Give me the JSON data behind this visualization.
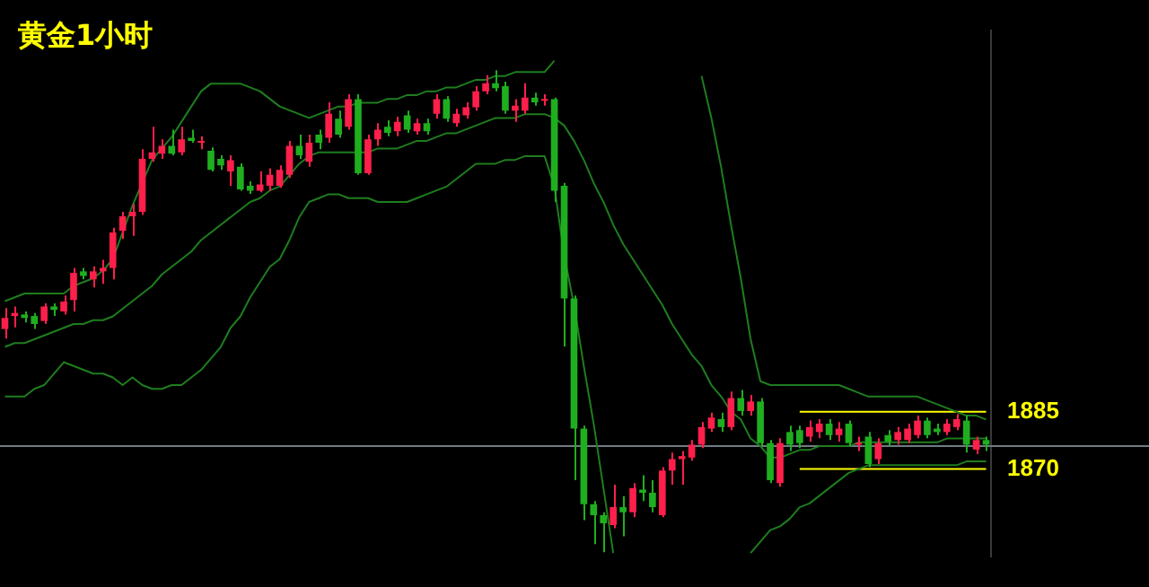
{
  "chart_data": {
    "type": "candlestick",
    "title": "黄金1小时",
    "categories": [
      null,
      null,
      null,
      null,
      null,
      null,
      null,
      null,
      null,
      null,
      null,
      null,
      null,
      null,
      null,
      null,
      null,
      null,
      null,
      null,
      null,
      null,
      null,
      null,
      null,
      null,
      null,
      null,
      null,
      null,
      null,
      null,
      null,
      null,
      null,
      null,
      null,
      null,
      null,
      null,
      null,
      null,
      null,
      null,
      null,
      null,
      null,
      null,
      null,
      null,
      null,
      null,
      null,
      null,
      null,
      null,
      null,
      null,
      null,
      null,
      null,
      null,
      null,
      null,
      null,
      null,
      null,
      null,
      null,
      null,
      null,
      null,
      null,
      null,
      null,
      null,
      null,
      null,
      null,
      null,
      null,
      null,
      null,
      null,
      null,
      null,
      null,
      null,
      null,
      null,
      null,
      null,
      null,
      null,
      null,
      null,
      null,
      null,
      null,
      null,
      null
    ],
    "ylim": [
      1847,
      1985
    ],
    "yticks": [
      1885,
      1870
    ],
    "tick_labels": "y",
    "colors": [
      "#ff1f4b",
      "#ff1f4b",
      "#1fae1f",
      "#1fae1f",
      "#ff1f4b",
      "#1fae1f",
      "#ff1f4b",
      "#ff1f4b",
      "#1fae1f",
      "#ff1f4b",
      "#ff1f4b",
      "#ff1f4b",
      "#ff1f4b",
      "#ff1f4b",
      "#ff1f4b",
      "#ff1f4b",
      "#ff1f4b",
      "#1fae1f",
      "#ff1f4b",
      "#1fae1f",
      "#ff1f4b",
      "#1fae1f",
      "#1fae1f",
      "#ff1f4b",
      "#1fae1f",
      "#1fae1f",
      "#ff1f4b",
      "#ff1f4b",
      "#ff1f4b",
      "#ff1f4b",
      "#1fae1f",
      "#ff1f4b",
      "#1fae1f",
      "#ff1f4b",
      "#1fae1f",
      "#ff1f4b",
      "#1fae1f",
      "#ff1f4b",
      "#ff1f4b",
      "#1fae1f",
      "#ff1f4b",
      "#1fae1f",
      "#ff1f4b",
      "#1fae1f",
      "#ff1f4b",
      "#1fae1f",
      "#ff1f4b",
      "#ff1f4b",
      "#ff1f4b",
      "#ff1f4b",
      "#1fae1f",
      "#1fae1f",
      "#ff1f4b",
      "#ff1f4b",
      "#1fae1f",
      "#ff1f4b",
      "#1fae1f",
      "#1fae1f",
      "#1fae1f",
      "#1fae1f",
      "#1fae1f",
      "#1fae1f",
      "#ff1f4b",
      "#1fae1f",
      "#ff1f4b",
      "#1fae1f",
      "#1fae1f",
      "#ff1f4b",
      "#ff1f4b",
      "#ff1f4b",
      "#ff1f4b",
      "#ff1f4b",
      "#ff1f4b",
      "#1fae1f",
      "#ff1f4b",
      "#1fae1f",
      "#ff1f4b",
      "#1fae1f",
      "#1fae1f",
      "#ff1f4b",
      "#1fae1f",
      "#1fae1f",
      "#ff1f4b",
      "#ff1f4b",
      "#1fae1f",
      "#ff1f4b",
      "#1fae1f",
      "#ff1f4b",
      "#1fae1f",
      "#ff1f4b",
      "#1fae1f",
      "#ff1f4b",
      "#ff1f4b",
      "#ff1f4b",
      "#1fae1f",
      "#1fae1f",
      "#ff1f4b",
      "#ff1f4b",
      "#1fae1f",
      "#ff1f4b",
      "#1fae1f"
    ],
    "ohlc": [
      [
        1906.7,
        1912.2,
        1904.2,
        1909.6
      ],
      [
        1910.1,
        1912.6,
        1907.1,
        1910.9
      ],
      [
        1910.5,
        1911.3,
        1908.4,
        1909.6
      ],
      [
        1910.1,
        1910.9,
        1906.7,
        1908.0
      ],
      [
        1908.8,
        1913.4,
        1908.0,
        1912.6
      ],
      [
        1912.6,
        1913.4,
        1910.1,
        1911.7
      ],
      [
        1911.3,
        1915.5,
        1910.5,
        1913.9
      ],
      [
        1914.3,
        1922.7,
        1911.3,
        1921.4
      ],
      [
        1921.8,
        1922.7,
        1919.7,
        1920.6
      ],
      [
        1919.7,
        1923.1,
        1917.6,
        1921.8
      ],
      [
        1921.8,
        1924.8,
        1918.5,
        1922.7
      ],
      [
        1922.7,
        1933.2,
        1919.7,
        1932.0
      ],
      [
        1932.4,
        1937.4,
        1930.3,
        1936.2
      ],
      [
        1936.2,
        1939.5,
        1931.1,
        1937.4
      ],
      [
        1937.4,
        1953.8,
        1936.6,
        1951.3
      ],
      [
        1951.3,
        1959.7,
        1950.5,
        1953.0
      ],
      [
        1952.6,
        1956.4,
        1951.3,
        1954.7
      ],
      [
        1954.7,
        1958.9,
        1952.2,
        1952.6
      ],
      [
        1953.0,
        1959.7,
        1952.2,
        1956.4
      ],
      [
        1956.8,
        1958.9,
        1955.5,
        1956.0
      ],
      [
        1955.5,
        1957.2,
        1953.8,
        1956.0
      ],
      [
        1953.4,
        1954.3,
        1948.0,
        1948.4
      ],
      [
        1951.3,
        1952.2,
        1948.4,
        1949.6
      ],
      [
        1948.0,
        1952.2,
        1944.2,
        1950.9
      ],
      [
        1949.2,
        1950.1,
        1942.9,
        1943.3
      ],
      [
        1944.2,
        1945.4,
        1942.1,
        1942.9
      ],
      [
        1942.9,
        1948.0,
        1942.5,
        1944.6
      ],
      [
        1944.2,
        1948.8,
        1942.9,
        1947.1
      ],
      [
        1944.2,
        1949.6,
        1943.7,
        1948.4
      ],
      [
        1947.1,
        1956.0,
        1946.3,
        1954.7
      ],
      [
        1954.7,
        1957.6,
        1951.3,
        1952.2
      ],
      [
        1950.5,
        1957.6,
        1949.2,
        1955.5
      ],
      [
        1957.6,
        1958.9,
        1953.8,
        1955.5
      ],
      [
        1956.8,
        1966.1,
        1955.5,
        1963.1
      ],
      [
        1961.8,
        1963.9,
        1956.8,
        1957.6
      ],
      [
        1959.7,
        1968.2,
        1958.9,
        1966.9
      ],
      [
        1966.9,
        1968.2,
        1947.1,
        1947.5
      ],
      [
        1947.5,
        1957.6,
        1947.1,
        1956.4
      ],
      [
        1956.4,
        1960.6,
        1954.7,
        1958.9
      ],
      [
        1959.7,
        1961.4,
        1957.2,
        1958.1
      ],
      [
        1958.5,
        1962.3,
        1957.2,
        1961.0
      ],
      [
        1962.7,
        1963.9,
        1958.1,
        1958.9
      ],
      [
        1958.5,
        1961.8,
        1957.6,
        1960.6
      ],
      [
        1960.6,
        1961.8,
        1957.6,
        1958.5
      ],
      [
        1963.1,
        1968.2,
        1961.8,
        1966.9
      ],
      [
        1966.9,
        1967.7,
        1961.0,
        1961.8
      ],
      [
        1960.6,
        1964.4,
        1959.7,
        1963.1
      ],
      [
        1962.7,
        1966.1,
        1961.8,
        1964.8
      ],
      [
        1964.8,
        1970.3,
        1963.9,
        1969.0
      ],
      [
        1969.0,
        1973.2,
        1968.2,
        1971.1
      ],
      [
        1971.1,
        1974.5,
        1969.0,
        1969.8
      ],
      [
        1970.3,
        1971.5,
        1963.1,
        1963.9
      ],
      [
        1963.9,
        1966.9,
        1961.0,
        1965.2
      ],
      [
        1963.9,
        1971.1,
        1963.1,
        1967.3
      ],
      [
        1967.3,
        1968.6,
        1965.2,
        1966.1
      ],
      [
        1966.5,
        1968.2,
        1965.2,
        1966.9
      ],
      [
        1966.9,
        1967.3,
        1940.0,
        1942.9
      ],
      [
        1944.2,
        1945.0,
        1902.1,
        1914.7
      ],
      [
        1914.7,
        1915.5,
        1867.1,
        1880.6
      ],
      [
        1880.6,
        1881.4,
        1856.6,
        1860.8
      ],
      [
        1860.8,
        1861.6,
        1850.3,
        1857.9
      ],
      [
        1857.9,
        1858.7,
        1848.2,
        1855.8
      ],
      [
        1855.3,
        1865.9,
        1854.5,
        1860.0
      ],
      [
        1860.0,
        1862.9,
        1852.4,
        1858.7
      ],
      [
        1858.7,
        1866.3,
        1857.4,
        1865.0
      ],
      [
        1864.6,
        1868.4,
        1861.6,
        1863.8
      ],
      [
        1863.8,
        1867.1,
        1858.7,
        1860.0
      ],
      [
        1857.9,
        1870.5,
        1857.4,
        1869.6
      ],
      [
        1869.6,
        1874.3,
        1865.9,
        1872.6
      ],
      [
        1872.6,
        1874.7,
        1865.9,
        1873.4
      ],
      [
        1873.0,
        1877.6,
        1872.2,
        1876.4
      ],
      [
        1876.4,
        1882.3,
        1875.5,
        1881.0
      ],
      [
        1880.6,
        1884.8,
        1879.7,
        1883.5
      ],
      [
        1883.1,
        1884.8,
        1879.7,
        1881.0
      ],
      [
        1881.0,
        1890.3,
        1880.2,
        1888.6
      ],
      [
        1888.6,
        1890.7,
        1884.0,
        1885.2
      ],
      [
        1885.2,
        1889.4,
        1884.0,
        1887.7
      ],
      [
        1887.7,
        1888.6,
        1876.0,
        1876.8
      ],
      [
        1876.8,
        1877.6,
        1866.3,
        1867.1
      ],
      [
        1866.3,
        1878.1,
        1865.4,
        1876.8
      ],
      [
        1879.7,
        1881.4,
        1874.7,
        1876.4
      ],
      [
        1880.2,
        1881.4,
        1875.5,
        1876.8
      ],
      [
        1878.5,
        1882.7,
        1877.2,
        1881.0
      ],
      [
        1879.7,
        1883.1,
        1878.1,
        1881.9
      ],
      [
        1881.9,
        1883.1,
        1877.6,
        1878.9
      ],
      [
        1878.9,
        1882.3,
        1877.2,
        1880.6
      ],
      [
        1881.9,
        1882.7,
        1876.0,
        1876.8
      ],
      [
        1876.4,
        1878.5,
        1874.7,
        1876.8
      ],
      [
        1878.5,
        1879.7,
        1870.5,
        1871.3
      ],
      [
        1872.6,
        1878.1,
        1871.3,
        1876.8
      ],
      [
        1878.9,
        1880.2,
        1876.0,
        1877.2
      ],
      [
        1877.6,
        1881.0,
        1876.4,
        1879.7
      ],
      [
        1877.6,
        1881.9,
        1876.8,
        1880.6
      ],
      [
        1878.9,
        1884.0,
        1878.1,
        1882.7
      ],
      [
        1882.7,
        1883.5,
        1878.1,
        1878.9
      ],
      [
        1880.6,
        1881.9,
        1878.9,
        1879.7
      ],
      [
        1879.7,
        1883.1,
        1878.9,
        1881.9
      ],
      [
        1881.0,
        1884.4,
        1880.2,
        1883.1
      ],
      [
        1882.7,
        1884.0,
        1874.3,
        1876.4
      ],
      [
        1875.1,
        1878.5,
        1873.9,
        1877.6
      ],
      [
        1877.6,
        1878.5,
        1874.7,
        1876.4
      ]
    ],
    "series": [
      {
        "type": "line",
        "color": "#1e7d1e",
        "values": [
          1914,
          1915,
          1916,
          1916,
          1916,
          1916,
          1916,
          1918,
          1919,
          1920,
          1922,
          1925,
          1932,
          1939,
          1945,
          1951,
          1954,
          1957,
          1961,
          1965,
          1969,
          1971,
          1971,
          1971,
          1971,
          1970,
          1969,
          1967,
          1965,
          1964,
          1963,
          1962,
          1963,
          1964,
          1965,
          1965,
          1966,
          1966,
          1966,
          1967,
          1967,
          1968,
          1968,
          1969,
          1969,
          1970,
          1970,
          1971,
          1972,
          1972,
          1973,
          1973,
          1974,
          1974,
          1974,
          1974,
          1977,
          null,
          null,
          null,
          null,
          null,
          null,
          null,
          null,
          null,
          null,
          null,
          null,
          null,
          null,
          1973,
          1962,
          1949,
          1934,
          1920,
          1904,
          1893,
          1892,
          1892,
          1892,
          1892,
          1892,
          1892,
          1892,
          1892,
          1891,
          1890,
          1889,
          1889,
          1889,
          1889,
          1889,
          1889,
          1888,
          1887,
          1886,
          1885,
          1884,
          1884,
          1883
        ]
      },
      {
        "type": "line",
        "color": "#1e7d1e",
        "values": [
          1902,
          1903,
          1903,
          1904,
          1905,
          1906,
          1907,
          1908,
          1908,
          1909,
          1909,
          1910,
          1912,
          1914,
          1916,
          1918,
          1921,
          1923,
          1925,
          1927,
          1930,
          1932,
          1934,
          1936,
          1938,
          1940,
          1941,
          1943,
          1944,
          1947,
          1950,
          1952,
          1953,
          1953,
          1953,
          1953,
          1953,
          1953,
          1954,
          1954,
          1954,
          1955,
          1956,
          1956,
          1957,
          1958,
          1958,
          1959,
          1960,
          1961,
          1962,
          1962,
          1962,
          1963,
          1963,
          1963,
          1962,
          1960,
          1956,
          1951,
          1945,
          1940,
          1934,
          1929,
          1925,
          1921,
          1917,
          1913,
          1908,
          1904,
          1900,
          1897,
          1892,
          1889,
          1885,
          1883,
          1878,
          1876,
          1873,
          1873,
          1874,
          1875,
          1875,
          1876,
          1876,
          1876,
          1876,
          1877,
          1877,
          1877,
          1877,
          1877,
          1877,
          1877,
          1877,
          1877,
          1878,
          1878,
          1878,
          1878,
          1878
        ]
      },
      {
        "type": "line",
        "color": "#1e7d1e",
        "values": [
          1889,
          1889,
          1889,
          1891,
          1892,
          1895,
          1898,
          1897,
          1896,
          1895,
          1895,
          1894,
          1892,
          1894,
          1892,
          1891,
          1891,
          1892,
          1892,
          1894,
          1896,
          1899,
          1902,
          1907,
          1910,
          1915,
          1919,
          1923,
          1925,
          1930,
          1936,
          1940,
          1941,
          1942,
          1942,
          1941,
          1941,
          1941,
          1940,
          1940,
          1940,
          1940,
          1941,
          1942,
          1943,
          1944,
          1946,
          1948,
          1950,
          1950,
          1950,
          1951,
          1951,
          1952,
          1952,
          1952,
          1944,
          1926,
          1913,
          1897,
          1882,
          1865,
          1848,
          null,
          null,
          null,
          null,
          null,
          null,
          null,
          null,
          null,
          null,
          null,
          null,
          null,
          1848,
          1851,
          1854,
          1855,
          1857,
          1860,
          1861,
          1863,
          1865,
          1867,
          1869,
          1870,
          1871,
          1871,
          1871,
          1871,
          1871,
          1871,
          1871,
          1871,
          1871,
          1871,
          1872,
          1872,
          1872
        ]
      },
      {
        "type": "line",
        "color": "#ffff00",
        "values": [
          null,
          null,
          null,
          null,
          null,
          null,
          null,
          null,
          null,
          null,
          null,
          null,
          null,
          null,
          null,
          null,
          null,
          null,
          null,
          null,
          null,
          null,
          null,
          null,
          null,
          null,
          null,
          null,
          null,
          null,
          null,
          null,
          null,
          null,
          null,
          null,
          null,
          null,
          null,
          null,
          null,
          null,
          null,
          null,
          null,
          null,
          null,
          null,
          null,
          null,
          null,
          null,
          null,
          null,
          null,
          null,
          null,
          null,
          null,
          null,
          null,
          null,
          null,
          null,
          null,
          null,
          null,
          null,
          null,
          null,
          null,
          null,
          null,
          null,
          null,
          null,
          null,
          null,
          null,
          null,
          null,
          1885,
          1885,
          1885,
          1885,
          1885,
          1885,
          1885,
          1885,
          1885,
          1885,
          1885,
          1885,
          1885,
          1885,
          1885,
          1885,
          1885,
          1885,
          1885,
          1885
        ]
      },
      {
        "type": "line",
        "color": "#ffff00",
        "values": [
          null,
          null,
          null,
          null,
          null,
          null,
          null,
          null,
          null,
          null,
          null,
          null,
          null,
          null,
          null,
          null,
          null,
          null,
          null,
          null,
          null,
          null,
          null,
          null,
          null,
          null,
          null,
          null,
          null,
          null,
          null,
          null,
          null,
          null,
          null,
          null,
          null,
          null,
          null,
          null,
          null,
          null,
          null,
          null,
          null,
          null,
          null,
          null,
          null,
          null,
          null,
          null,
          null,
          null,
          null,
          null,
          null,
          null,
          null,
          null,
          null,
          null,
          null,
          null,
          null,
          null,
          null,
          null,
          null,
          null,
          null,
          null,
          null,
          null,
          null,
          null,
          null,
          null,
          null,
          null,
          null,
          1870,
          1870,
          1870,
          1870,
          1870,
          1870,
          1870,
          1870,
          1870,
          1870,
          1870,
          1870,
          1870,
          1870,
          1870,
          1870,
          1870,
          1870,
          1870,
          1870
        ]
      }
    ],
    "ref_lines": [
      {
        "axis": "y",
        "value": 1876.3,
        "color": "#6f7c84"
      }
    ]
  }
}
